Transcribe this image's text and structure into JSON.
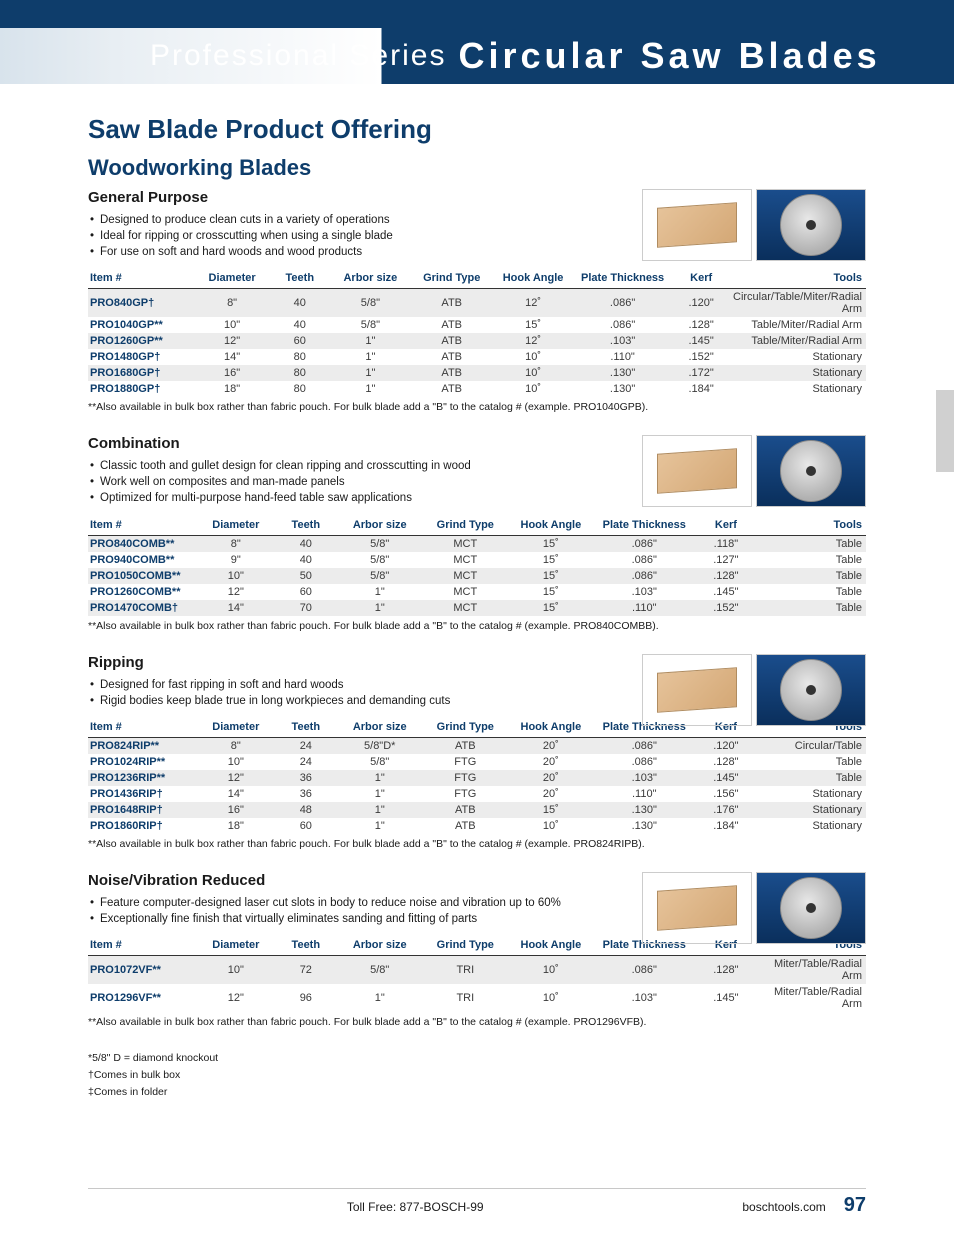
{
  "header": {
    "prefix": "Professional Series",
    "main": "Circular Saw Blades"
  },
  "page_title": "Saw Blade Product Offering",
  "subtitle": "Woodworking Blades",
  "columns": [
    "Item #",
    "Diameter",
    "Teeth",
    "Arbor size",
    "Grind Type",
    "Hook Angle",
    "Plate Thickness",
    "Kerf",
    "Tools"
  ],
  "sections": [
    {
      "heading": "General Purpose",
      "bullets": [
        "Designed to produce clean cuts in a variety of operations",
        "Ideal for ripping or crosscutting when using a single blade",
        "For use on soft and hard woods and wood products"
      ],
      "rows": [
        [
          "PRO840GP†",
          "8\"",
          "40",
          "5/8\"",
          "ATB",
          "12˚",
          ".086\"",
          ".120\"",
          "Circular/Table/Miter/Radial Arm"
        ],
        [
          "PRO1040GP**",
          "10\"",
          "40",
          "5/8\"",
          "ATB",
          "15˚",
          ".086\"",
          ".128\"",
          "Table/Miter/Radial Arm"
        ],
        [
          "PRO1260GP**",
          "12\"",
          "60",
          "1\"",
          "ATB",
          "12˚",
          ".103\"",
          ".145\"",
          "Table/Miter/Radial Arm"
        ],
        [
          "PRO1480GP†",
          "14\"",
          "80",
          "1\"",
          "ATB",
          "10˚",
          ".110\"",
          ".152\"",
          "Stationary"
        ],
        [
          "PRO1680GP†",
          "16\"",
          "80",
          "1\"",
          "ATB",
          "10˚",
          ".130\"",
          ".172\"",
          "Stationary"
        ],
        [
          "PRO1880GP†",
          "18\"",
          "80",
          "1\"",
          "ATB",
          "10˚",
          ".130\"",
          ".184\"",
          "Stationary"
        ]
      ],
      "footnote": "**Also available in bulk box rather than fabric pouch. For bulk blade add a \"B\" to the catalog # (example. PRO1040GPB)."
    },
    {
      "heading": "Combination",
      "bullets": [
        "Classic tooth and gullet design for clean ripping and crosscutting in wood",
        "Work well on composites and man-made panels",
        "Optimized for multi-purpose hand-feed table saw applications"
      ],
      "rows": [
        [
          "PRO840COMB**",
          "8\"",
          "40",
          "5/8\"",
          "MCT",
          "15˚",
          ".086\"",
          ".118\"",
          "Table"
        ],
        [
          "PRO940COMB**",
          "9\"",
          "40",
          "5/8\"",
          "MCT",
          "15˚",
          ".086\"",
          ".127\"",
          "Table"
        ],
        [
          "PRO1050COMB**",
          "10\"",
          "50",
          "5/8\"",
          "MCT",
          "15˚",
          ".086\"",
          ".128\"",
          "Table"
        ],
        [
          "PRO1260COMB**",
          "12\"",
          "60",
          "1\"",
          "MCT",
          "15˚",
          ".103\"",
          ".145\"",
          "Table"
        ],
        [
          "PRO1470COMB†",
          "14\"",
          "70",
          "1\"",
          "MCT",
          "15˚",
          ".110\"",
          ".152\"",
          "Table"
        ]
      ],
      "footnote": "**Also available in bulk box rather than fabric pouch. For bulk blade add a \"B\" to the catalog # (example. PRO840COMBB)."
    },
    {
      "heading": "Ripping",
      "bullets": [
        "Designed for fast ripping in soft and hard woods",
        "Rigid bodies keep blade true in long workpieces and demanding cuts"
      ],
      "rows": [
        [
          "PRO824RIP**",
          "8\"",
          "24",
          "5/8\"D*",
          "ATB",
          "20˚",
          ".086\"",
          ".120\"",
          "Circular/Table"
        ],
        [
          "PRO1024RIP**",
          "10\"",
          "24",
          "5/8\"",
          "FTG",
          "20˚",
          ".086\"",
          ".128\"",
          "Table"
        ],
        [
          "PRO1236RIP**",
          "12\"",
          "36",
          "1\"",
          "FTG",
          "20˚",
          ".103\"",
          ".145\"",
          "Table"
        ],
        [
          "PRO1436RIP†",
          "14\"",
          "36",
          "1\"",
          "FTG",
          "20˚",
          ".110\"",
          ".156\"",
          "Stationary"
        ],
        [
          "PRO1648RIP†",
          "16\"",
          "48",
          "1\"",
          "ATB",
          "15˚",
          ".130\"",
          ".176\"",
          "Stationary"
        ],
        [
          "PRO1860RIP†",
          "18\"",
          "60",
          "1\"",
          "ATB",
          "10˚",
          ".130\"",
          ".184\"",
          "Stationary"
        ]
      ],
      "footnote": "**Also available in bulk box rather than fabric pouch. For bulk blade add a \"B\" to the catalog # (example. PRO824RIPB)."
    },
    {
      "heading": "Noise/Vibration Reduced",
      "bullets": [
        "Feature computer-designed laser cut slots in body to reduce noise and vibration up to 60%",
        "Exceptionally fine finish that virtually eliminates sanding and fitting of parts"
      ],
      "rows": [
        [
          "PRO1072VF**",
          "10\"",
          "72",
          "5/8\"",
          "TRI",
          "10˚",
          ".086\"",
          ".128\"",
          "Miter/Table/Radial Arm"
        ],
        [
          "PRO1296VF**",
          "12\"",
          "96",
          "1\"",
          "TRI",
          "10˚",
          ".103\"",
          ".145\"",
          "Miter/Table/Radial Arm"
        ]
      ],
      "footnote": "**Also available in bulk box rather than fabric pouch. For bulk blade add a \"B\" to the catalog # (example. PRO1296VFB)."
    }
  ],
  "end_notes": [
    "*5/8\" D = diamond knockout",
    "†Comes in bulk box",
    "‡Comes in folder"
  ],
  "footer": {
    "phone": "Toll Free:  877-BOSCH-99",
    "url": "boschtools.com",
    "page": "97"
  },
  "col_widths": [
    "14%",
    "10%",
    "8%",
    "11%",
    "11%",
    "11%",
    "13%",
    "8%",
    "14%"
  ]
}
